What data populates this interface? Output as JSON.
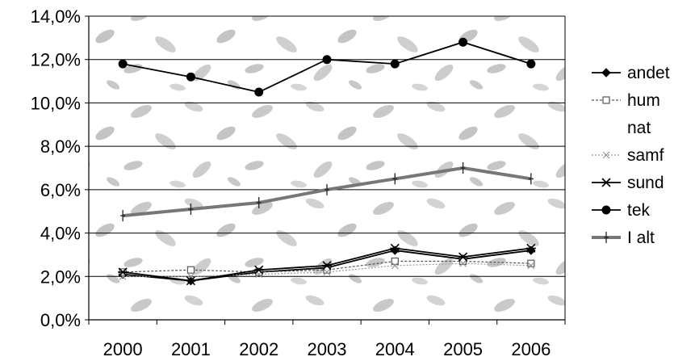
{
  "chart_data": {
    "type": "line",
    "categories": [
      "2000",
      "2001",
      "2002",
      "2003",
      "2004",
      "2005",
      "2006"
    ],
    "ylim": [
      0,
      14
    ],
    "yticks": [
      "0,0%",
      "2,0%",
      "4,0%",
      "6,0%",
      "8,0%",
      "10,0%",
      "12,0%",
      "14,0%"
    ],
    "grid": true,
    "legend_position": "right",
    "title": "",
    "xlabel": "",
    "ylabel": "",
    "series": [
      {
        "name": "andet",
        "marker": "diamond",
        "color": "#000000",
        "values": [
          2.1,
          1.8,
          2.2,
          2.4,
          3.2,
          2.8,
          3.2
        ]
      },
      {
        "name": "hum",
        "marker": "square-open",
        "color": "#555555",
        "values": [
          2.2,
          2.3,
          2.2,
          2.3,
          2.7,
          2.7,
          2.6
        ]
      },
      {
        "name": "nat",
        "marker": "none",
        "color": "#bbbbbb",
        "values": [
          null,
          null,
          null,
          null,
          null,
          null,
          null
        ]
      },
      {
        "name": "samf",
        "marker": "x",
        "color": "#999999",
        "values": [
          2.0,
          2.0,
          2.1,
          2.2,
          2.5,
          2.6,
          2.5
        ]
      },
      {
        "name": "sund",
        "marker": "asterisk",
        "color": "#000000",
        "values": [
          2.2,
          1.8,
          2.3,
          2.5,
          3.3,
          2.9,
          3.3
        ]
      },
      {
        "name": "tek",
        "marker": "circle",
        "color": "#000000",
        "values": [
          11.8,
          11.2,
          10.5,
          12.0,
          11.8,
          12.8,
          11.8
        ]
      },
      {
        "name": "I alt",
        "marker": "plus",
        "color": "#777777",
        "values": [
          4.8,
          5.1,
          5.4,
          6.0,
          6.5,
          7.0,
          6.5
        ]
      }
    ]
  }
}
